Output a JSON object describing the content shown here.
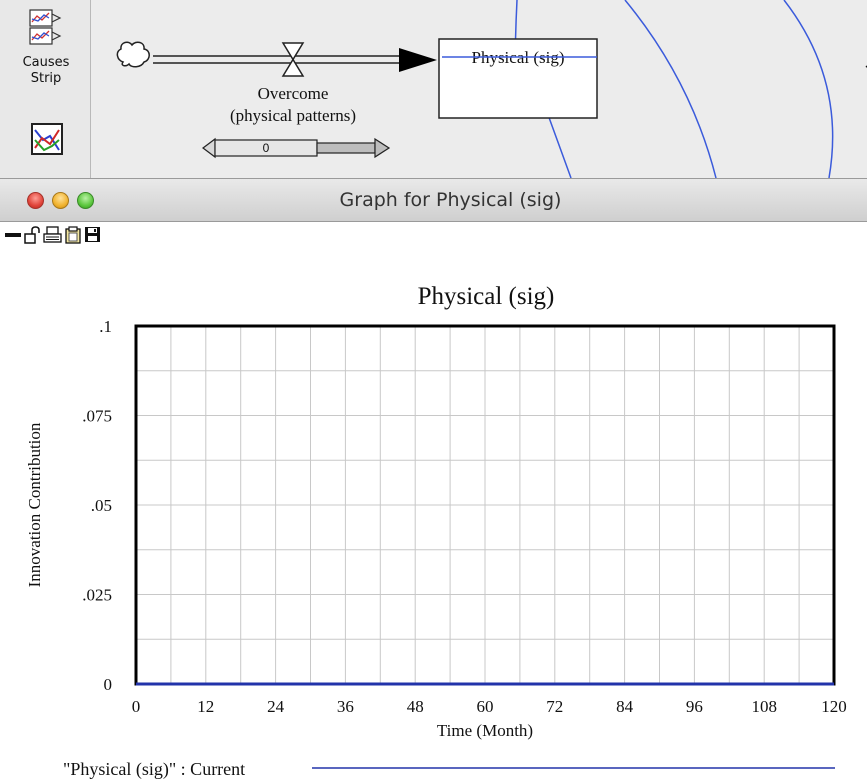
{
  "toolbar": {
    "causes_strip_label_line1": "Causes",
    "causes_strip_label_line2": "Strip",
    "causes_strip_icon": "causes-strip-icon",
    "graph_icon": "graph-icon"
  },
  "model": {
    "flow_label_line1": "Overcome",
    "flow_label_line2": "(physical patterns)",
    "slider_value": "0",
    "stock_label": "Physical (sig)",
    "link_color": "#3b5bdb"
  },
  "window": {
    "title": "Graph for Physical (sig)",
    "toolbar_icons": [
      "minimize-icon",
      "lock-icon",
      "print-icon",
      "copy-icon",
      "save-icon"
    ]
  },
  "chart_data": {
    "type": "line",
    "title": "Physical (sig)",
    "xlabel": "Time (Month)",
    "ylabel": "Innovation Contribution",
    "xlim": [
      0,
      120
    ],
    "ylim": [
      0,
      0.1
    ],
    "x_ticks": [
      0,
      12,
      24,
      36,
      48,
      60,
      72,
      84,
      96,
      108,
      120
    ],
    "x_tick_labels": [
      "0",
      "12",
      "24",
      "36",
      "48",
      "60",
      "72",
      "84",
      "96",
      "108",
      "120"
    ],
    "y_ticks": [
      0,
      0.025,
      0.05,
      0.075,
      0.1
    ],
    "y_tick_labels": [
      "0",
      ".025",
      ".05",
      ".075",
      ".1"
    ],
    "minor_x_step": 6,
    "minor_y_step": 0.0125,
    "grid": true,
    "legend_position": "bottom",
    "series": [
      {
        "name": "\"Physical (sig)\" : Current",
        "color": "#2233aa",
        "x": [
          0,
          120
        ],
        "y": [
          0,
          0
        ]
      }
    ]
  }
}
